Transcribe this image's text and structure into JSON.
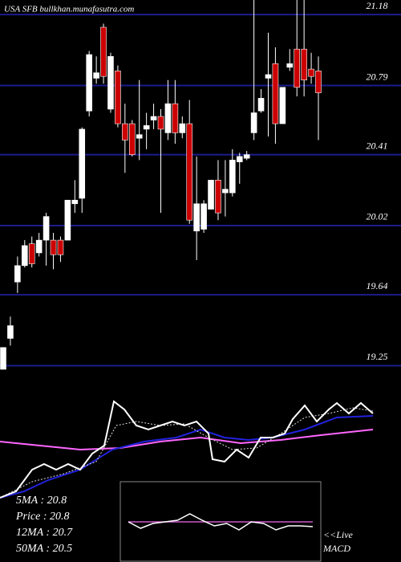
{
  "chart_data": [
    {
      "type": "candlestick",
      "title": "USA SFB bullkhan.munafasutra.com",
      "open": [
        19.23,
        19.4,
        19.71,
        19.8,
        19.92,
        19.87,
        19.94,
        19.94,
        19.94,
        19.94,
        20.14,
        20.17,
        20.65,
        20.83,
        21.11,
        20.66,
        20.87,
        20.58,
        20.58,
        20.5,
        20.55,
        20.6,
        20.62,
        20.53,
        20.69,
        20.53,
        20.58,
        19.99,
        20.0,
        20.11,
        20.27,
        20.2,
        20.2,
        20.37,
        20.39,
        20.53,
        20.65,
        20.83,
        20.91,
        20.58,
        20.89,
        20.99,
        20.99,
        20.88,
        20.87
      ],
      "high": [
        19.35,
        19.52,
        19.85,
        19.94,
        19.96,
        19.98,
        20.09,
        19.98,
        19.96,
        20.16,
        20.27,
        20.56,
        20.98,
        20.95,
        21.13,
        20.97,
        20.9,
        20.69,
        20.6,
        20.82,
        20.64,
        20.69,
        20.66,
        20.82,
        20.82,
        20.62,
        20.71,
        20.4,
        20.16,
        20.27,
        20.38,
        20.38,
        20.44,
        20.42,
        20.43,
        21.26,
        20.77,
        21.08,
        21.0,
        20.78,
        20.99,
        21.26,
        21.26,
        20.97,
        20.95
      ],
      "low": [
        19.23,
        19.36,
        19.65,
        19.79,
        19.79,
        19.85,
        19.8,
        19.78,
        19.82,
        19.94,
        20.09,
        20.09,
        20.62,
        20.8,
        20.8,
        20.64,
        20.56,
        20.31,
        20.4,
        20.38,
        20.44,
        20.55,
        20.09,
        20.49,
        20.47,
        20.5,
        20.03,
        19.83,
        19.98,
        20.11,
        20.05,
        20.07,
        20.18,
        20.25,
        20.38,
        20.49,
        20.64,
        20.51,
        20.47,
        20.58,
        20.87,
        20.73,
        20.73,
        20.8,
        20.49
      ],
      "close": [
        19.35,
        19.47,
        19.8,
        19.91,
        19.81,
        19.94,
        20.07,
        19.86,
        19.86,
        20.16,
        20.16,
        20.55,
        20.96,
        20.86,
        20.84,
        20.95,
        20.58,
        20.49,
        20.41,
        20.52,
        20.57,
        20.62,
        20.55,
        20.69,
        20.53,
        20.58,
        20.05,
        20.14,
        20.14,
        20.27,
        20.09,
        20.22,
        20.38,
        20.4,
        20.41,
        20.64,
        20.72,
        20.85,
        20.58,
        20.78,
        20.91,
        20.78,
        20.82,
        20.84,
        20.75
      ],
      "up_color": "#ffffff",
      "down_color": "#cc0000",
      "grid_color": "#1c1c8c",
      "ylim": [
        19.23,
        21.26
      ],
      "yticks": [
        21.18,
        20.79,
        20.41,
        20.02,
        19.64,
        19.25
      ]
    },
    {
      "type": "line",
      "legend": [
        "5MA : 20.8",
        "Price : 20.8",
        "12MA : 20.7",
        "50MA : 20.5"
      ],
      "xlim": [
        0,
        465
      ],
      "ylim": [
        0,
        100
      ],
      "series": [
        {
          "color": "#ff66ff",
          "x": [
            0,
            50,
            100,
            150,
            200,
            250,
            300,
            350,
            400,
            465
          ],
          "values": [
            56,
            52,
            48,
            49.6,
            56,
            60,
            54.4,
            57.6,
            62.4,
            68
          ]
        },
        {
          "color": "#2222dd",
          "x": [
            0,
            30,
            60,
            100,
            140,
            180,
            220,
            250,
            280,
            310,
            340,
            380,
            420,
            465
          ],
          "values": [
            0,
            6.4,
            17.6,
            28,
            48,
            56,
            60,
            68,
            60,
            57.6,
            60,
            68,
            80,
            81.6
          ]
        },
        {
          "color": "#dddddd",
          "dash": true,
          "x": [
            0,
            40,
            80,
            120,
            145,
            170,
            200,
            230,
            260,
            290,
            320,
            350,
            380,
            410,
            440,
            465
          ],
          "values": [
            0,
            16,
            24,
            36,
            72,
            76,
            72,
            73.6,
            60,
            48,
            49.6,
            64,
            80,
            84,
            89.6,
            86.4
          ]
        },
        {
          "color": "#ffffff",
          "x": [
            0,
            20,
            40,
            55,
            70,
            85,
            100,
            115,
            130,
            142,
            155,
            170,
            185,
            200,
            215,
            230,
            245,
            260,
            265,
            280,
            295,
            310,
            325,
            340,
            355,
            365,
            380,
            395,
            410,
            420,
            435,
            450,
            465
          ],
          "values": [
            0,
            6.4,
            28,
            33.6,
            28,
            33.6,
            28,
            44,
            52,
            96,
            88,
            72,
            68,
            72,
            76,
            72,
            76,
            64,
            38.4,
            36,
            48,
            40,
            60,
            60,
            64,
            78.4,
            92,
            76,
            88,
            94.4,
            84,
            94.4,
            84
          ]
        }
      ]
    },
    {
      "type": "line",
      "annotation": [
        "<<Live",
        "MACD"
      ],
      "xlim": [
        0,
        15
      ],
      "ylim": [
        0,
        100
      ],
      "series": [
        {
          "color": "#cc55cc",
          "values": [
            50,
            50,
            50,
            50,
            50,
            50,
            50,
            50,
            50,
            50,
            50,
            50,
            50,
            50,
            50,
            50
          ]
        },
        {
          "color": "#ffffff",
          "values": [
            50,
            42,
            48,
            50,
            52,
            60,
            52,
            45,
            48,
            40,
            50,
            48,
            40,
            45,
            45,
            44
          ]
        }
      ]
    }
  ]
}
